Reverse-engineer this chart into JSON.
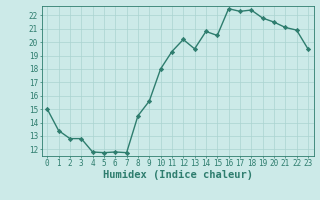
{
  "x": [
    0,
    1,
    2,
    3,
    4,
    5,
    6,
    7,
    8,
    9,
    10,
    11,
    12,
    13,
    14,
    15,
    16,
    17,
    18,
    19,
    20,
    21,
    22,
    23
  ],
  "y": [
    15.0,
    13.4,
    12.8,
    12.8,
    11.8,
    11.75,
    11.8,
    11.75,
    14.5,
    15.6,
    18.0,
    19.3,
    20.2,
    19.5,
    20.8,
    20.5,
    22.5,
    22.3,
    22.4,
    21.8,
    21.5,
    21.1,
    20.9,
    19.5
  ],
  "line_color": "#2e7d6e",
  "marker": "D",
  "marker_size": 2.2,
  "bg_color": "#cceae8",
  "grid_color": "#aad4d0",
  "axis_color": "#2e7d6e",
  "xlabel": "Humidex (Indice chaleur)",
  "ylim": [
    11.5,
    22.7
  ],
  "xlim": [
    -0.5,
    23.5
  ],
  "yticks": [
    12,
    13,
    14,
    15,
    16,
    17,
    18,
    19,
    20,
    21,
    22
  ],
  "xticks": [
    0,
    1,
    2,
    3,
    4,
    5,
    6,
    7,
    8,
    9,
    10,
    11,
    12,
    13,
    14,
    15,
    16,
    17,
    18,
    19,
    20,
    21,
    22,
    23
  ],
  "tick_fontsize": 5.5,
  "xlabel_fontsize": 7.5,
  "line_width": 1.0
}
